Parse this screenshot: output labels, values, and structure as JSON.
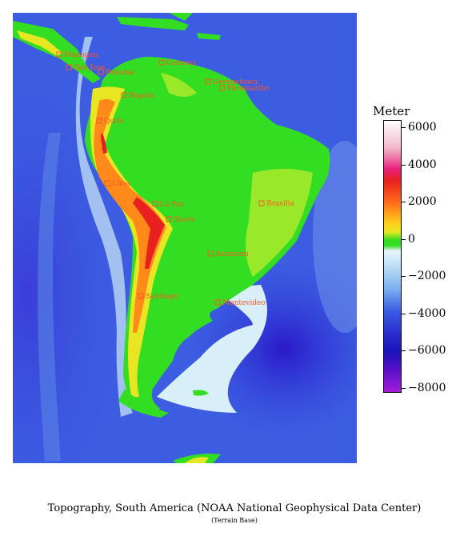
{
  "legend": {
    "title": "Meter",
    "ticks": [
      "6000",
      "4000",
      "2000",
      "0",
      "−2000",
      "−4000",
      "−6000",
      "−8000"
    ]
  },
  "cities": [
    {
      "name": "Managua"
    },
    {
      "name": "San Jose"
    },
    {
      "name": "Panama"
    },
    {
      "name": "Caracas"
    },
    {
      "name": "Georgetown"
    },
    {
      "name": "Paramaribo"
    },
    {
      "name": "Bogota"
    },
    {
      "name": "Quito"
    },
    {
      "name": "Lima"
    },
    {
      "name": "La Paz"
    },
    {
      "name": "Sucre"
    },
    {
      "name": "Brasilia"
    },
    {
      "name": "Asuncion"
    },
    {
      "name": "Santiago"
    },
    {
      "name": "Montevideo"
    }
  ],
  "caption": "Topography, South America  (NOAA National Geophysical Data Center)",
  "subcaption": "(Terrain Base)",
  "colors": {
    "ocean_deep": "#2a18c8",
    "ocean_mid": "#3a58e0",
    "ocean_shelf": "#d8eef8",
    "lowland": "#33dd22",
    "upland": "#e8e622",
    "highland": "#ff8a1a",
    "peak": "#e82020",
    "city": "#ff5522"
  }
}
